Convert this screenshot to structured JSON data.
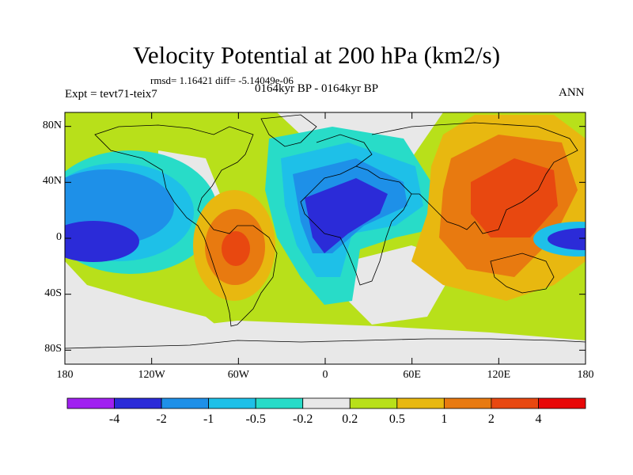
{
  "title": "Velocity Potential at 200 hPa (km2/s)",
  "stats": "rmsd= 1.16421 diff= -5.14049e-06",
  "experiment": "Expt = tevt71-teix7",
  "period": "0164kyr BP - 0164kyr BP",
  "season": "ANN",
  "map": {
    "lon_range": [
      -180,
      180
    ],
    "lat_range": [
      -90,
      90
    ],
    "lat_ticks": [
      {
        "value": 80,
        "label": "80N"
      },
      {
        "value": 40,
        "label": "40N"
      },
      {
        "value": 0,
        "label": "0"
      },
      {
        "value": -40,
        "label": "40S"
      },
      {
        "value": -80,
        "label": "80S"
      }
    ],
    "lon_ticks": [
      {
        "value": -180,
        "label": "180"
      },
      {
        "value": -120,
        "label": "120W"
      },
      {
        "value": -60,
        "label": "60W"
      },
      {
        "value": 0,
        "label": "0"
      },
      {
        "value": 60,
        "label": "60E"
      },
      {
        "value": 120,
        "label": "120E"
      },
      {
        "value": 180,
        "label": "180"
      }
    ]
  },
  "colorbar": {
    "labels": [
      "-4",
      "-2",
      "-1",
      "-0.5",
      "-0.2",
      "0.2",
      "0.5",
      "1",
      "2",
      "4"
    ],
    "colors": [
      "#a020f0",
      "#2b2bd8",
      "#1e90e8",
      "#1ec0e8",
      "#28dcc8",
      "#e8e8e8",
      "#b8e01a",
      "#e8b810",
      "#e87a10",
      "#e84810",
      "#e80808"
    ]
  }
}
